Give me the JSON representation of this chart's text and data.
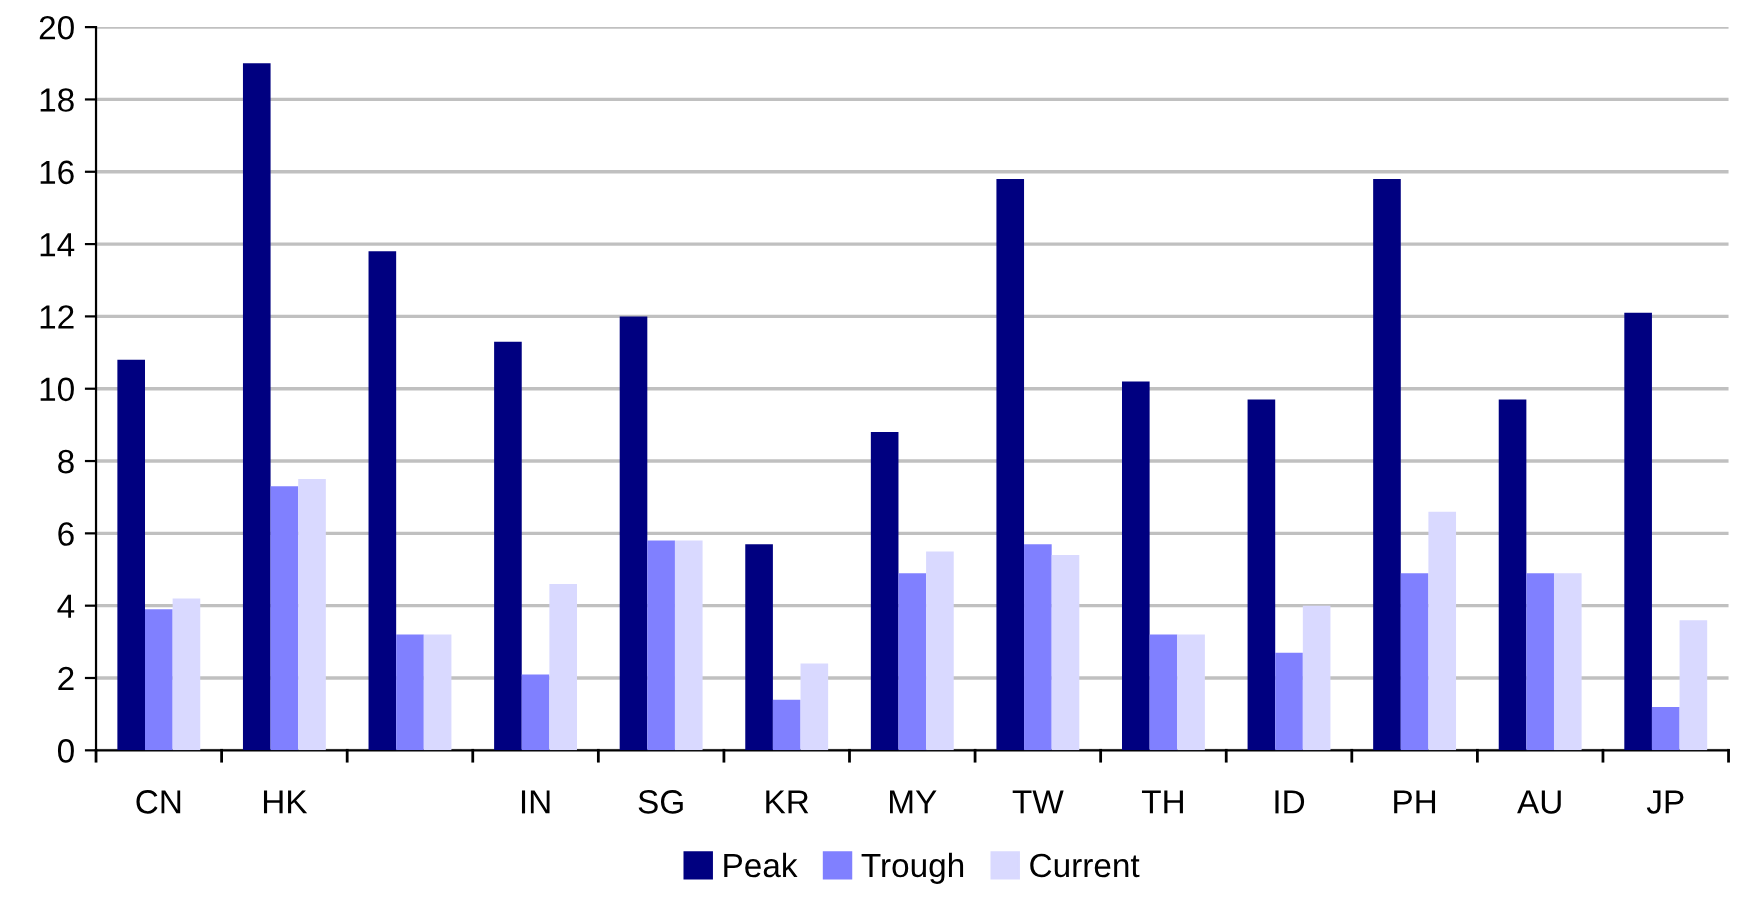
{
  "chart_data": {
    "type": "bar",
    "categories": [
      "CN",
      "HK",
      null,
      "IN",
      "SG",
      "KR",
      "MY",
      "TW",
      "TH",
      "ID",
      "PH",
      "AU",
      "JP"
    ],
    "series": [
      {
        "name": "Peak",
        "color": "#000080",
        "values": [
          10.8,
          19.0,
          13.8,
          11.3,
          12.0,
          5.7,
          8.8,
          15.8,
          10.2,
          9.7,
          15.8,
          9.7,
          12.1
        ]
      },
      {
        "name": "Trough",
        "color": "#8080ff",
        "values": [
          3.9,
          7.3,
          3.2,
          2.1,
          5.8,
          1.4,
          4.9,
          5.7,
          3.2,
          2.7,
          4.9,
          4.9,
          1.2
        ]
      },
      {
        "name": "Current",
        "color": "#d9d9ff",
        "values": [
          4.2,
          7.5,
          3.2,
          4.6,
          5.8,
          2.4,
          5.5,
          5.4,
          3.2,
          4.0,
          6.6,
          4.9,
          3.6
        ]
      }
    ],
    "ylim": [
      0,
      20
    ],
    "yticks": [
      0,
      2,
      4,
      6,
      8,
      10,
      12,
      14,
      16,
      18,
      20
    ],
    "grid": "y",
    "legend": "bottom"
  }
}
